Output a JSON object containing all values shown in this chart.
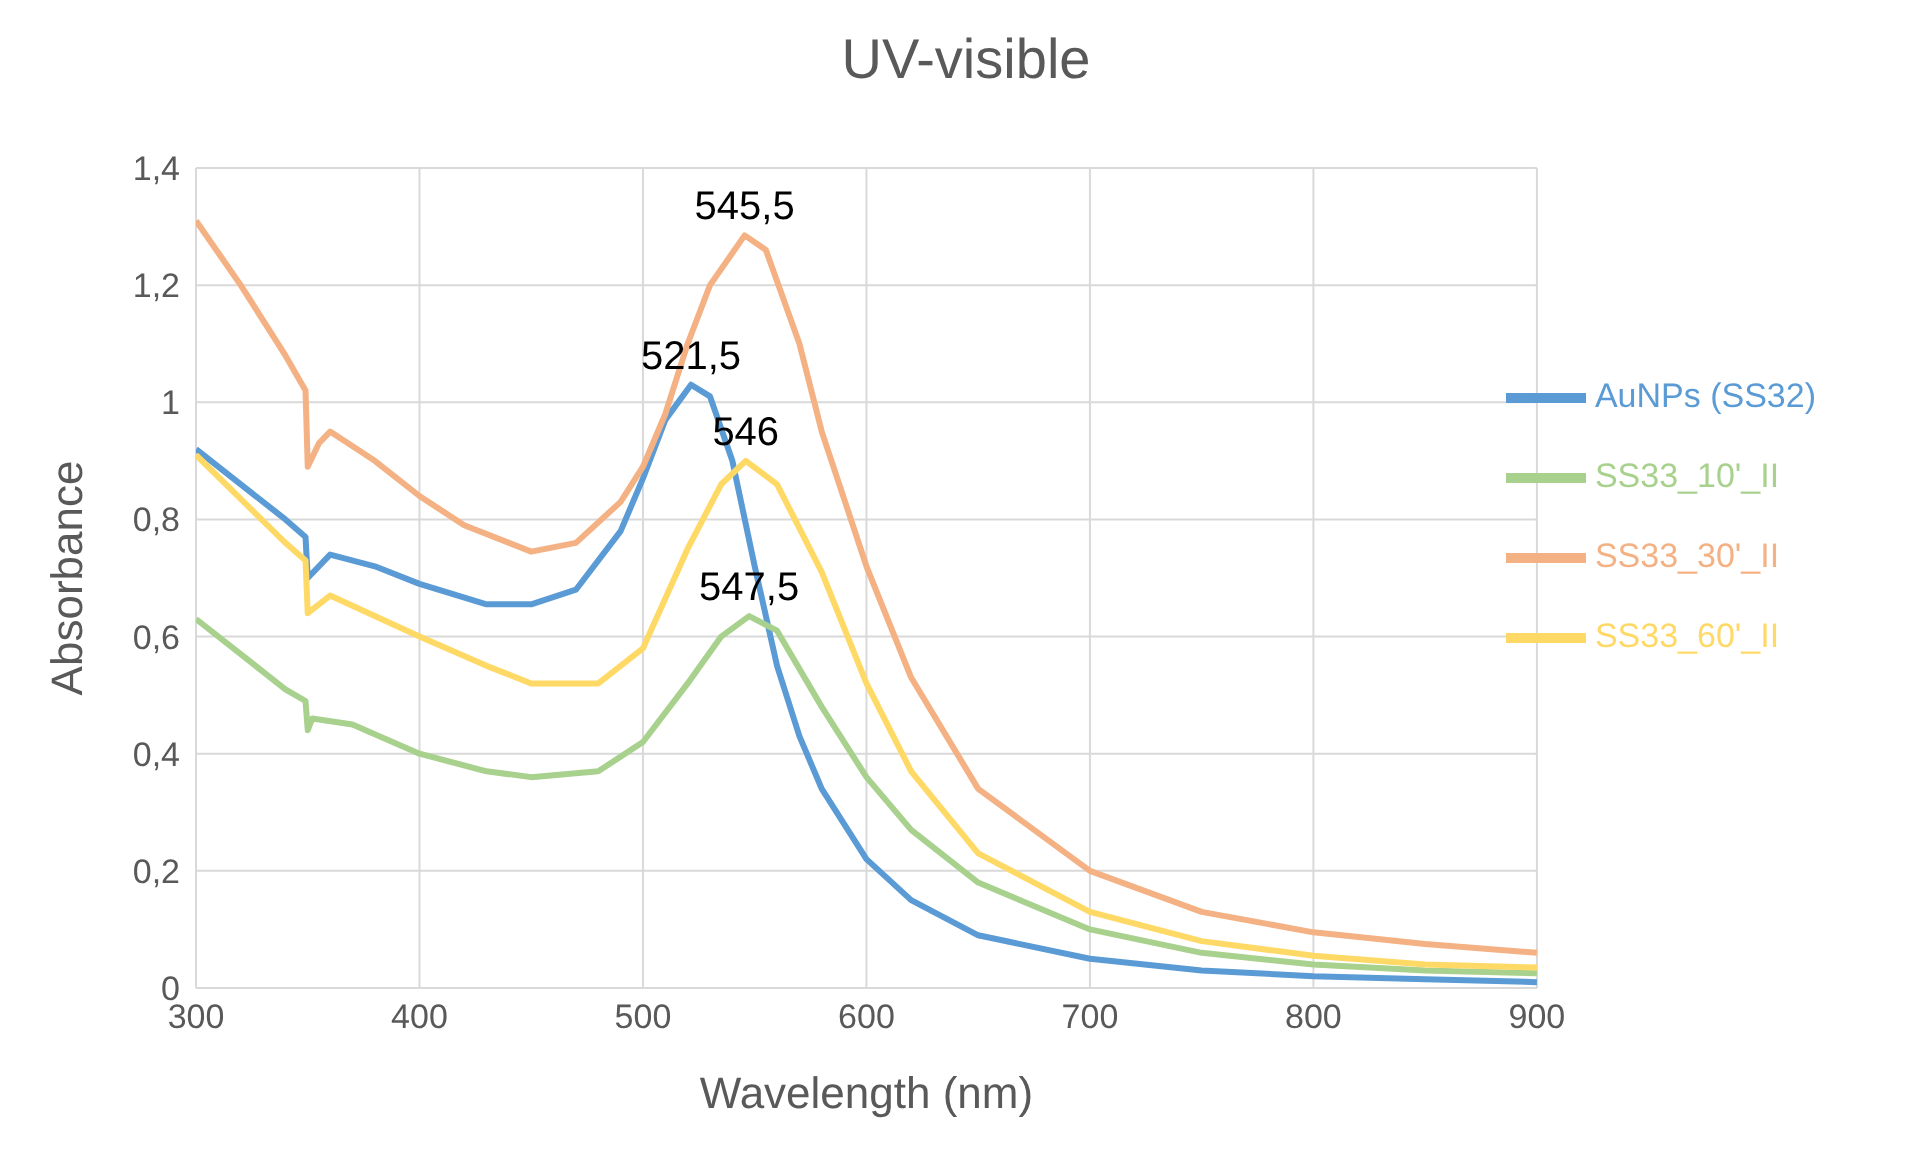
{
  "chart_data": {
    "type": "line",
    "title": "UV-visible",
    "xlabel": "Wavelength (nm)",
    "ylabel": "Absorbance",
    "xlim": [
      300,
      900
    ],
    "xticks": [
      300,
      400,
      500,
      600,
      700,
      800,
      900
    ],
    "ylim": [
      0,
      1.4
    ],
    "yticks": [
      0,
      {
        "value": 0.2,
        "label": "0,2"
      },
      {
        "value": 0.4,
        "label": "0,4"
      },
      {
        "value": 0.6,
        "label": "0,6"
      },
      {
        "value": 0.8,
        "label": "0,8"
      },
      1,
      {
        "value": 1.2,
        "label": "1,2"
      },
      {
        "value": 1.4,
        "label": "1,4"
      }
    ],
    "grid": true,
    "legend": "right",
    "marker": "none",
    "line_style": "solid",
    "series": [
      {
        "name": "AuNPs (SS32)",
        "color": "#5b9bd5",
        "x": [
          300,
          340,
          349,
          350,
          360,
          380,
          400,
          430,
          450,
          470,
          490,
          500,
          510,
          521.5,
          530,
          540,
          550,
          560,
          570,
          580,
          600,
          620,
          650,
          700,
          750,
          800,
          850,
          900
        ],
        "values": [
          0.92,
          0.8,
          0.77,
          0.7,
          0.74,
          0.72,
          0.69,
          0.655,
          0.655,
          0.68,
          0.78,
          0.87,
          0.97,
          1.03,
          1.01,
          0.9,
          0.72,
          0.55,
          0.43,
          0.34,
          0.22,
          0.15,
          0.09,
          0.05,
          0.03,
          0.02,
          0.015,
          0.01
        ]
      },
      {
        "name": "SS33_10'_II",
        "color": "#a9d18e",
        "x": [
          300,
          340,
          349,
          350,
          352,
          370,
          400,
          430,
          450,
          480,
          500,
          520,
          535,
          547.5,
          560,
          580,
          600,
          620,
          650,
          700,
          750,
          800,
          850,
          900
        ],
        "values": [
          0.63,
          0.51,
          0.49,
          0.44,
          0.46,
          0.45,
          0.4,
          0.37,
          0.36,
          0.37,
          0.42,
          0.52,
          0.6,
          0.635,
          0.61,
          0.48,
          0.36,
          0.27,
          0.18,
          0.1,
          0.06,
          0.04,
          0.03,
          0.025
        ]
      },
      {
        "name": "SS33_30'_II",
        "color": "#f4b183",
        "x": [
          300,
          320,
          340,
          349,
          350,
          355,
          360,
          380,
          400,
          420,
          450,
          470,
          490,
          500,
          510,
          520,
          530,
          545.5,
          555,
          570,
          580,
          600,
          620,
          650,
          700,
          750,
          800,
          850,
          900
        ],
        "values": [
          1.31,
          1.2,
          1.08,
          1.02,
          0.89,
          0.93,
          0.95,
          0.9,
          0.84,
          0.79,
          0.745,
          0.76,
          0.83,
          0.89,
          0.98,
          1.1,
          1.2,
          1.285,
          1.26,
          1.1,
          0.95,
          0.72,
          0.53,
          0.34,
          0.2,
          0.13,
          0.095,
          0.075,
          0.06
        ]
      },
      {
        "name": "SS33_60'_II",
        "color": "#ffd966",
        "x": [
          300,
          340,
          349,
          350,
          360,
          400,
          430,
          450,
          480,
          500,
          520,
          535,
          546,
          560,
          580,
          600,
          620,
          650,
          700,
          750,
          800,
          850,
          900
        ],
        "values": [
          0.91,
          0.76,
          0.73,
          0.64,
          0.67,
          0.6,
          0.55,
          0.52,
          0.52,
          0.58,
          0.75,
          0.86,
          0.9,
          0.86,
          0.71,
          0.52,
          0.37,
          0.23,
          0.13,
          0.08,
          0.055,
          0.04,
          0.035
        ]
      }
    ],
    "annotations": [
      {
        "text": "521,5",
        "x": 521.5,
        "y": 1.03
      },
      {
        "text": "545,5",
        "x": 545.5,
        "y": 1.285
      },
      {
        "text": "546",
        "x": 546,
        "y": 0.9
      },
      {
        "text": "547,5",
        "x": 547.5,
        "y": 0.635
      }
    ]
  }
}
